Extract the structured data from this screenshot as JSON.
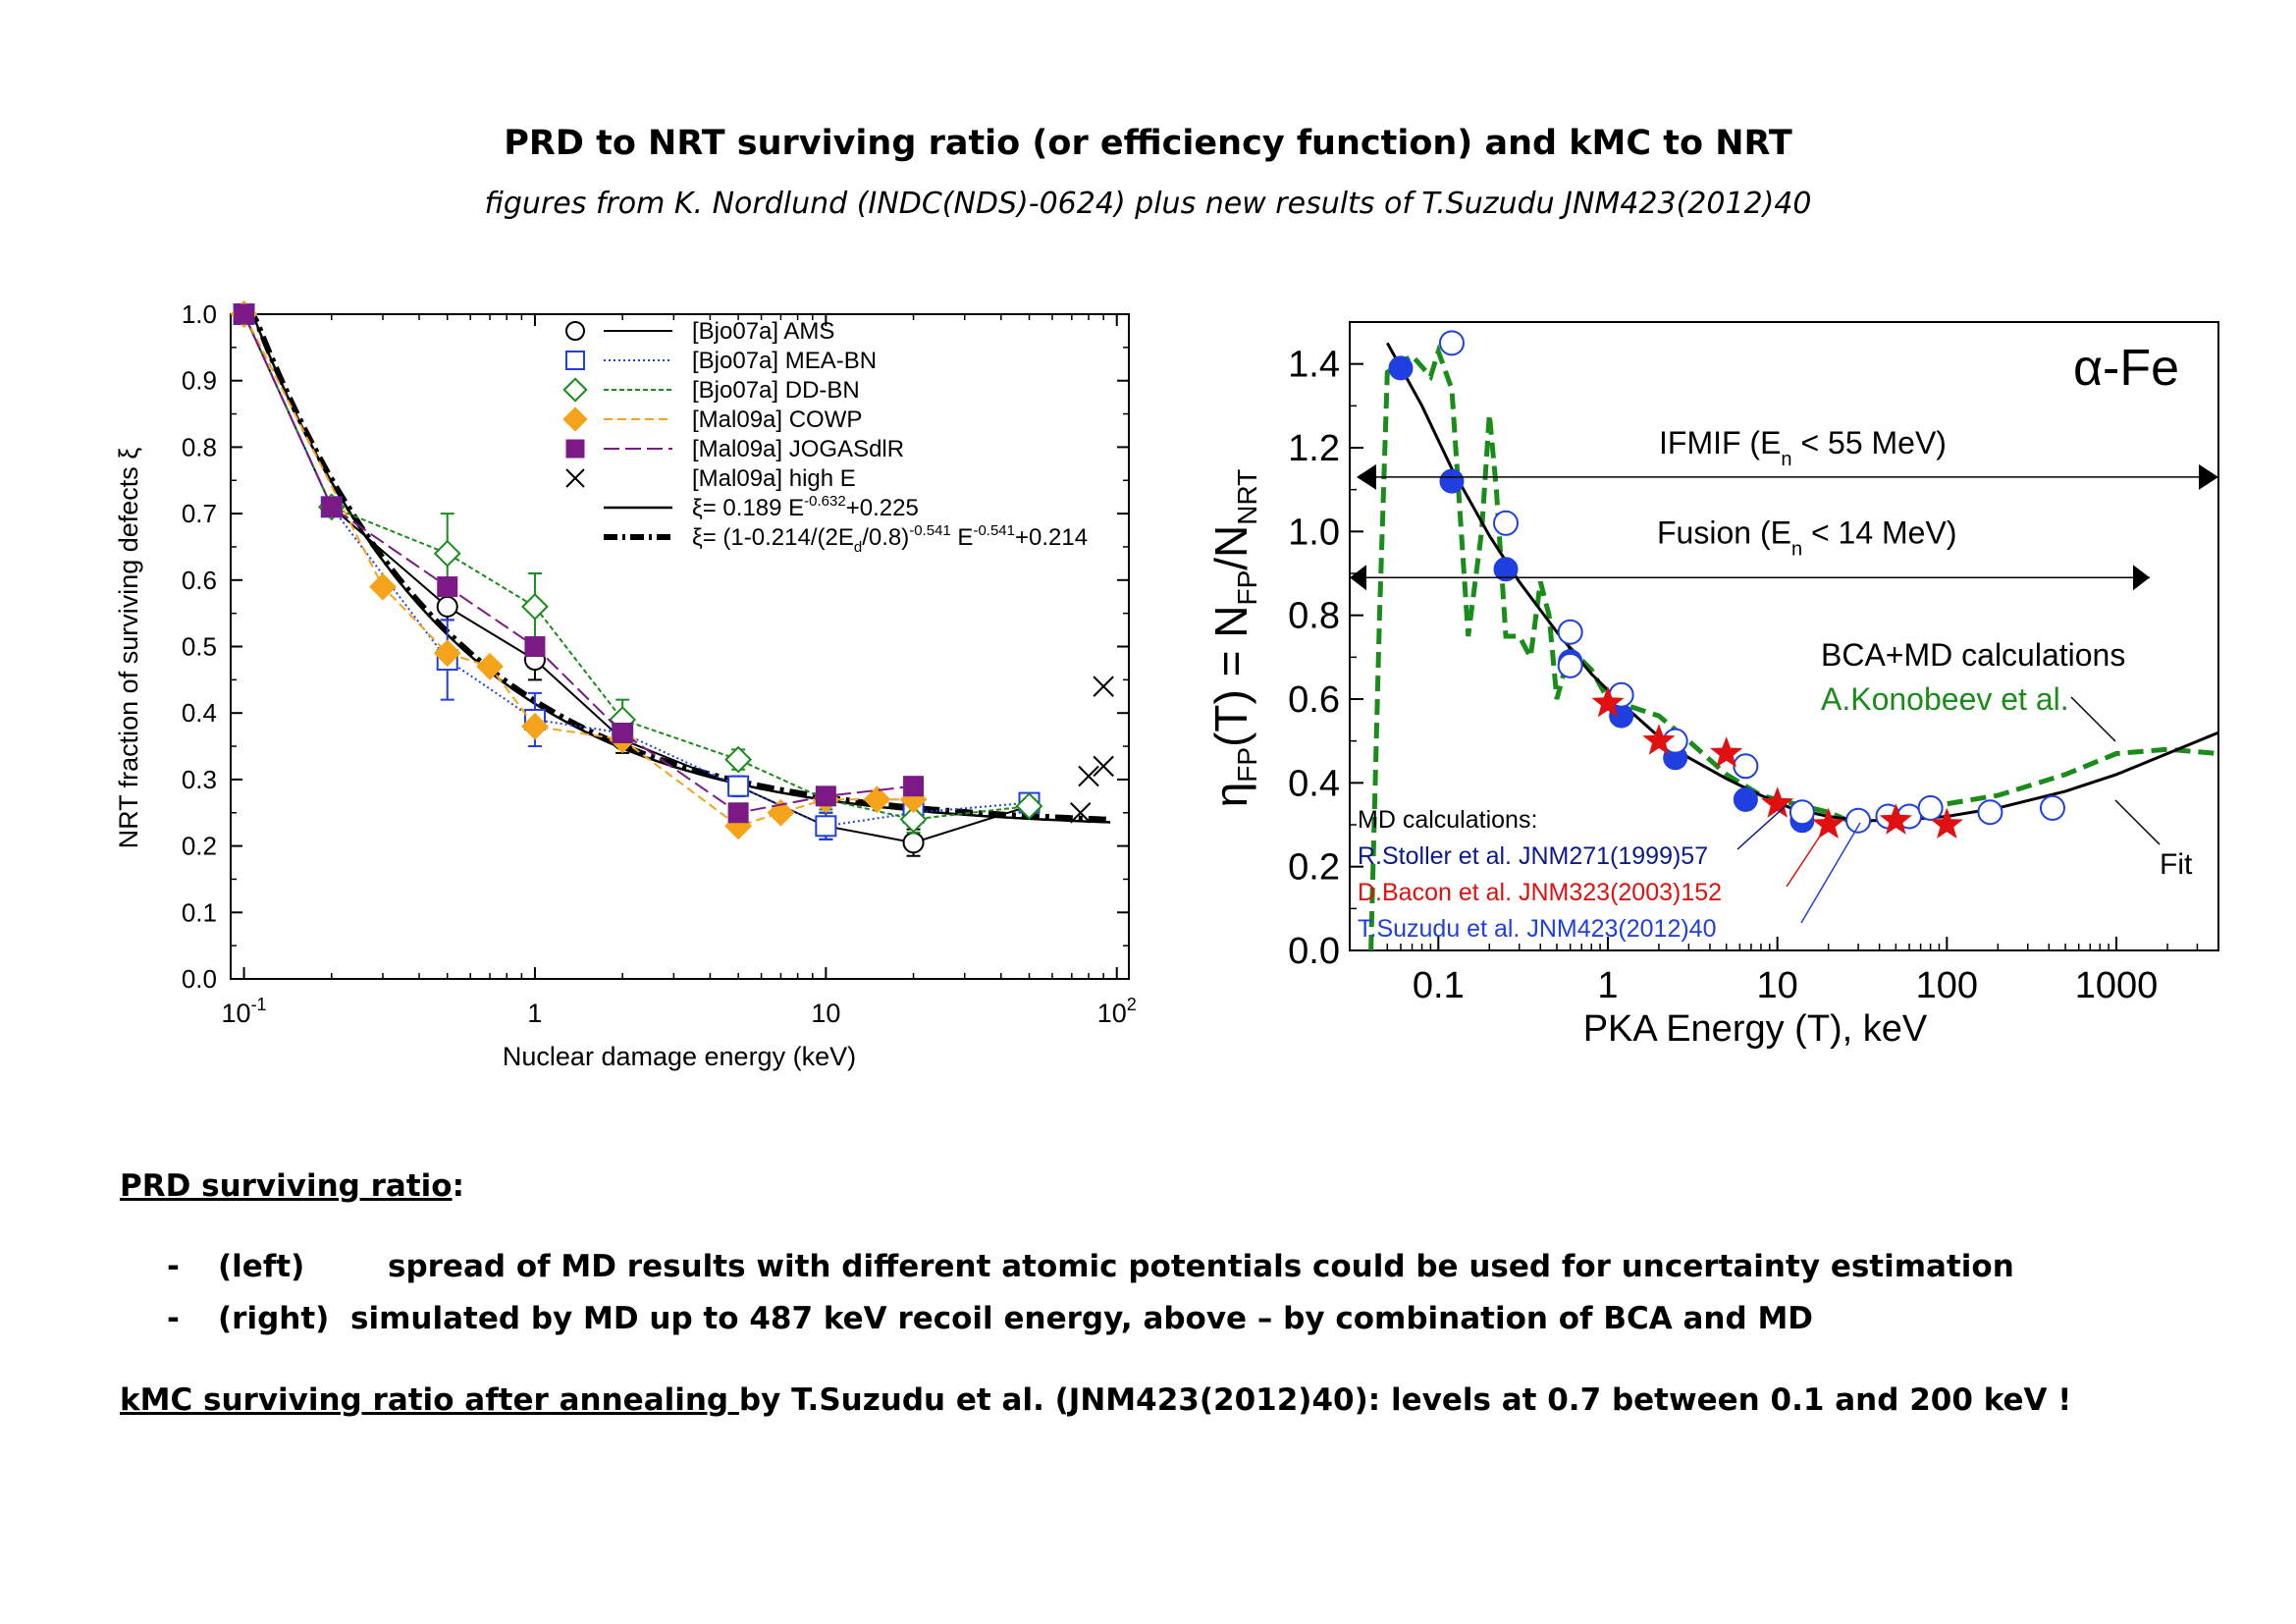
{
  "page": {
    "title": "PRD to NRT surviving ratio (or efficiency function) and kMC to NRT",
    "subtitle": "figures from K. Nordlund (INDC(NDS)-0624) plus new results of T.Suzudu JNM423(2012)40"
  },
  "notes": {
    "heading": "PRD surviving ratio",
    "heading_colon": ":",
    "bullets": [
      {
        "dash": "-",
        "tag": "(left)",
        "text": "spread of MD results with different atomic potentials could be used for uncertainty estimation"
      },
      {
        "dash": "-",
        "tag": "(right)",
        "text": "simulated by MD up to 487 keV recoil energy, above – by combination of BCA and MD"
      }
    ],
    "kmc_underlined": "kMC surviving ratio after annealing ",
    "kmc_rest": "by T.Suzudu et al. (JNM423(2012)40): levels at 0.7 between 0.1 and 200 keV !"
  },
  "chart_data": [
    {
      "type": "line",
      "xlabel": "Nuclear damage energy (keV)",
      "ylabel": "NRT fraction of surviving defects ξ",
      "xscale": "log",
      "xlim": [
        0.09,
        110
      ],
      "ylim": [
        0,
        1.0
      ],
      "yticks": [
        "0.0",
        "0.1",
        "0.2",
        "0.3",
        "0.4",
        "0.5",
        "0.6",
        "0.7",
        "0.8",
        "0.9",
        "1.0"
      ],
      "xticks": [
        {
          "value": 0.1,
          "base": "10",
          "exp": "-1"
        },
        {
          "value": 1,
          "base": "1",
          "exp": ""
        },
        {
          "value": 10,
          "base": "10",
          "exp": ""
        },
        {
          "value": 100,
          "base": "10",
          "exp": "2"
        }
      ],
      "legend_position": "top-right",
      "series": [
        {
          "name": "[Bjo07a] AMS",
          "color": "#000000",
          "marker": "circle-open",
          "dash": "",
          "x": [
            0.1,
            0.2,
            0.5,
            1,
            2,
            5,
            10,
            20,
            50
          ],
          "y": [
            1.0,
            0.71,
            0.56,
            0.48,
            0.36,
            0.29,
            0.23,
            0.205,
            0.26
          ],
          "err": [
            0,
            0,
            0.02,
            0.03,
            0.02,
            0.015,
            0.02,
            0.02,
            0.01
          ]
        },
        {
          "name": "[Bjo07a] MEA-BN",
          "color": "#1f3fe0",
          "marker": "square-open",
          "dash": "2,3",
          "x": [
            0.1,
            0.2,
            0.5,
            1,
            2,
            5,
            10,
            20,
            50
          ],
          "y": [
            1.0,
            0.71,
            0.48,
            0.39,
            0.37,
            0.29,
            0.23,
            0.25,
            0.265
          ],
          "err": [
            0,
            0,
            0.06,
            0.04,
            0.02,
            0.015,
            0.02,
            0.02,
            0.01
          ]
        },
        {
          "name": "[Bjo07a] DD-BN",
          "color": "#1a8c1a",
          "marker": "diamond-open",
          "dash": "5,3",
          "x": [
            0.1,
            0.2,
            0.5,
            1,
            2,
            5,
            10,
            20,
            50
          ],
          "y": [
            1.0,
            0.71,
            0.64,
            0.56,
            0.39,
            0.33,
            0.27,
            0.24,
            0.26
          ],
          "err": [
            0,
            0,
            0.06,
            0.05,
            0.03,
            0.015,
            0.015,
            0.02,
            0.01
          ]
        },
        {
          "name": "[Mal09a] COWP",
          "color": "#f5a31a",
          "marker": "diamond-filled",
          "dash": "9,5",
          "x": [
            0.1,
            0.3,
            0.5,
            0.7,
            1,
            2,
            5,
            7,
            10,
            15,
            20
          ],
          "y": [
            1.0,
            0.59,
            0.49,
            0.47,
            0.38,
            0.36,
            0.23,
            0.25,
            0.27,
            0.27,
            0.27
          ],
          "err": []
        },
        {
          "name": "[Mal09a] JOGASdlR",
          "color": "#7b1a87",
          "marker": "square-filled",
          "dash": "16,6",
          "x": [
            0.1,
            0.2,
            0.5,
            1,
            2,
            5,
            10,
            20
          ],
          "y": [
            1.0,
            0.71,
            0.59,
            0.5,
            0.37,
            0.25,
            0.275,
            0.29
          ],
          "err": []
        },
        {
          "name": "[Mal09a] high E",
          "color": "#000000",
          "marker": "cross",
          "dash": "none",
          "x": [
            75,
            90,
            90,
            80
          ],
          "y": [
            0.25,
            0.44,
            0.32,
            0.305
          ],
          "err": []
        }
      ],
      "fits": [
        {
          "name": "ξ= 0.189 E",
          "exp": "-0.632",
          "suffix": "+0.225",
          "style": "solid"
        },
        {
          "name": "ξ= (1-0.214/(2E",
          "sub": "d",
          "mid": "/0.8)",
          "exp": "-0.541",
          "mid2": " E",
          "exp2": "-0.541",
          "suffix": "+0.214",
          "style": "dash-dot"
        }
      ]
    },
    {
      "type": "scatter",
      "xlabel": "PKA Energy (T),   keV",
      "ylabel": "ηFP(T) = NFP/NNRT",
      "xscale": "log",
      "xlim": [
        0.03,
        4000
      ],
      "ylim": [
        0,
        1.5
      ],
      "yticks": [
        "0.0",
        "0.2",
        "0.4",
        "0.6",
        "0.8",
        "1.0",
        "1.2",
        "1.4"
      ],
      "xticks": [
        "0.1",
        "1",
        "10",
        "100",
        "1000"
      ],
      "annotation_material": "α-Fe",
      "annotations": [
        {
          "text": "IFMIF (E",
          "sub": "n",
          "tail": " < 55 MeV)"
        },
        {
          "text": "Fusion (E",
          "sub": "n",
          "tail": " < 14 MeV)"
        },
        {
          "text": "BCA+MD calculations"
        },
        {
          "text": "A.Konobeev et al."
        },
        {
          "text": "Fit"
        },
        {
          "text": "MD calculations:"
        },
        {
          "text": "R.Stoller et al. JNM271(1999)57",
          "color": "#0a1a8c"
        },
        {
          "text": "D.Bacon et al. JNM323(2003)152",
          "color": "#e01010"
        },
        {
          "text": "T.Suzudu et al. JNM423(2012)40",
          "color": "#1f3fe0"
        }
      ],
      "series": [
        {
          "name": "Stoller",
          "marker": "circle-filled",
          "color": "#1f3fe0",
          "x": [
            0.06,
            0.12,
            0.25,
            0.6,
            1.2,
            2.5,
            6.5,
            14
          ],
          "y": [
            1.39,
            1.12,
            0.91,
            0.69,
            0.56,
            0.46,
            0.36,
            0.31
          ]
        },
        {
          "name": "Suzudu",
          "marker": "circle-open",
          "color": "#1f3fe0",
          "x": [
            0.12,
            0.25,
            0.6,
            0.6,
            1.2,
            2.5,
            6.5,
            14,
            30,
            45,
            60,
            80,
            180,
            420
          ],
          "y": [
            1.45,
            1.02,
            0.76,
            0.68,
            0.61,
            0.5,
            0.44,
            0.33,
            0.31,
            0.32,
            0.32,
            0.34,
            0.33,
            0.34
          ]
        },
        {
          "name": "Bacon",
          "marker": "star",
          "color": "#e01010",
          "x": [
            1.0,
            2.0,
            5.0,
            10,
            20,
            50,
            100
          ],
          "y": [
            0.59,
            0.5,
            0.47,
            0.35,
            0.3,
            0.31,
            0.3
          ]
        }
      ],
      "fit_line": {
        "x": [
          0.05,
          0.08,
          0.12,
          0.2,
          0.3,
          0.5,
          0.8,
          1.2,
          2,
          3,
          5,
          8,
          12,
          20,
          30,
          50,
          100,
          200,
          500,
          1000,
          2000,
          4000
        ],
        "y": [
          1.45,
          1.3,
          1.15,
          0.99,
          0.88,
          0.76,
          0.66,
          0.59,
          0.51,
          0.46,
          0.41,
          0.37,
          0.34,
          0.32,
          0.31,
          0.31,
          0.32,
          0.34,
          0.38,
          0.42,
          0.47,
          0.52
        ]
      },
      "bca_line": {
        "x": [
          0.04,
          0.045,
          0.05,
          0.07,
          0.09,
          0.1,
          0.12,
          0.15,
          0.18,
          0.2,
          0.22,
          0.25,
          0.3,
          0.35,
          0.4,
          0.45,
          0.5,
          0.6,
          0.8,
          1.0,
          2,
          3,
          5,
          8,
          10,
          20,
          30,
          50,
          100,
          200,
          500,
          1000,
          2000,
          4000
        ],
        "y": [
          0.0,
          0.8,
          1.38,
          1.42,
          1.37,
          1.43,
          1.34,
          0.75,
          1.0,
          1.28,
          1.1,
          0.75,
          0.75,
          0.7,
          0.88,
          0.8,
          0.6,
          0.72,
          0.67,
          0.6,
          0.56,
          0.5,
          0.42,
          0.37,
          0.36,
          0.33,
          0.3,
          0.33,
          0.35,
          0.37,
          0.42,
          0.47,
          0.48,
          0.47
        ]
      }
    }
  ]
}
